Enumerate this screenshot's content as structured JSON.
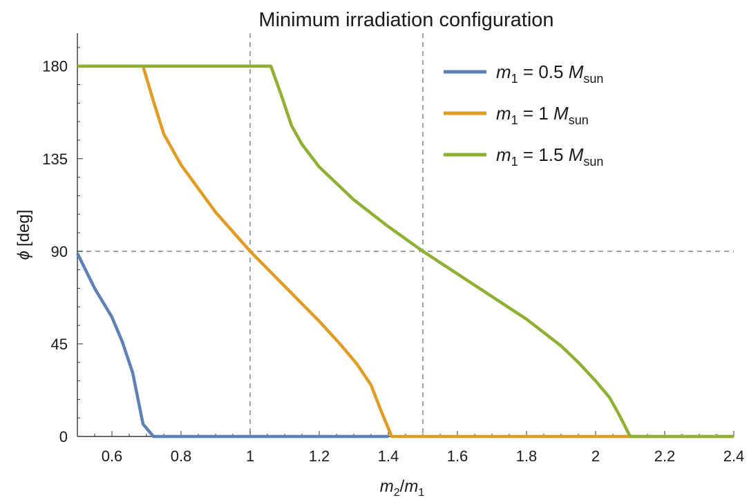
{
  "chart_data": {
    "type": "line",
    "title": "Minimum irradiation configuration",
    "xlabel": {
      "var1": "m",
      "sub1": "2",
      "sep": "/",
      "var2": "m",
      "sub2": "1"
    },
    "ylabel": {
      "symbol": "ϕ",
      "unit": "[deg]"
    },
    "xlim": [
      0.5,
      2.4
    ],
    "ylim": [
      0,
      196
    ],
    "x_ticks": [
      0.6,
      0.8,
      1,
      1.2,
      1.4,
      1.6,
      1.8,
      2,
      2.2,
      2.4
    ],
    "x_tick_labels": [
      "0.6",
      "0.8",
      "1",
      "1.2",
      "1.4",
      "1.6",
      "1.8",
      "2",
      "2.2",
      "2.4"
    ],
    "y_ticks": [
      0,
      45,
      90,
      135,
      180
    ],
    "y_tick_labels": [
      "0",
      "45",
      "90",
      "135",
      "180"
    ],
    "grid": false,
    "reference_lines": {
      "x": [
        1.0,
        1.5
      ],
      "y": [
        90
      ]
    },
    "legend_position": "top-right",
    "series": [
      {
        "name": {
          "var": "m",
          "sub": "1",
          "mid": " = 0.5 ",
          "unit_var": "M",
          "unit_sub": "sun"
        },
        "color": "#5E81B5",
        "x": [
          0.5,
          0.55,
          0.6,
          0.63,
          0.66,
          0.69,
          0.72,
          0.8,
          1.0,
          1.2,
          1.4
        ],
        "y": [
          89,
          72,
          58,
          46,
          31,
          6,
          0,
          0,
          0,
          0,
          0
        ]
      },
      {
        "name": {
          "var": "m",
          "sub": "1",
          "mid": " = 1 ",
          "unit_var": "M",
          "unit_sub": "sun"
        },
        "color": "#E19C24",
        "x": [
          0.5,
          0.69,
          0.72,
          0.75,
          0.8,
          0.9,
          1.0,
          1.1,
          1.2,
          1.26,
          1.31,
          1.35,
          1.38,
          1.41,
          1.6,
          1.8,
          2.0,
          2.2,
          2.4
        ],
        "y": [
          180,
          180,
          163,
          147,
          132,
          109,
          90,
          73,
          56,
          45,
          35,
          25,
          12,
          0,
          0,
          0,
          0,
          0,
          0
        ]
      },
      {
        "name": {
          "var": "m",
          "sub": "1",
          "mid": " = 1.5 ",
          "unit_var": "M",
          "unit_sub": "sun"
        },
        "color": "#8FB032",
        "x": [
          0.5,
          1.06,
          1.09,
          1.12,
          1.15,
          1.2,
          1.3,
          1.4,
          1.5,
          1.6,
          1.7,
          1.8,
          1.9,
          1.95,
          2.0,
          2.04,
          2.07,
          2.1,
          2.2,
          2.3,
          2.4
        ],
        "y": [
          180,
          180,
          166,
          151,
          142,
          131,
          115,
          102,
          90,
          79,
          68,
          57,
          44,
          36,
          27,
          19,
          10,
          0,
          0,
          0,
          0
        ]
      }
    ]
  }
}
